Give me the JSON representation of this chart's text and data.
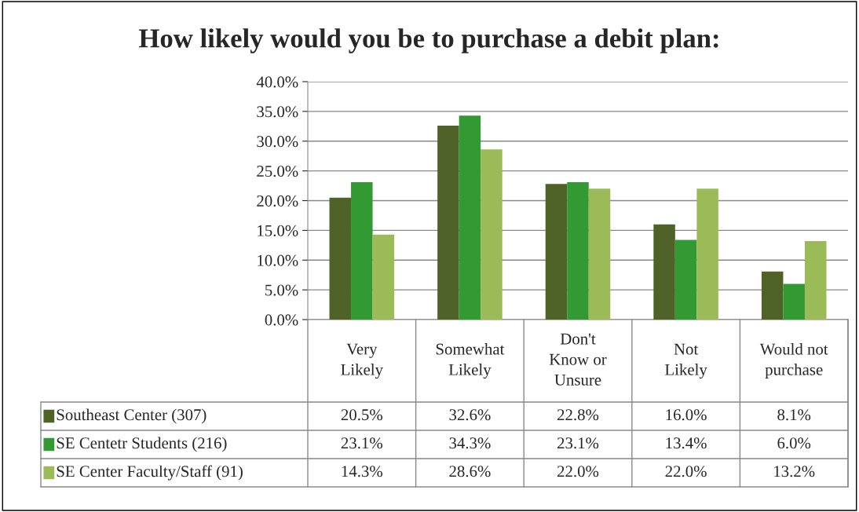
{
  "chart_data": {
    "type": "bar",
    "title": "How likely would you be to purchase a debit plan:",
    "categories": [
      "Very\nLikely",
      "Somewhat\nLikely",
      "Don't\nKnow or\nUnsure",
      "Not\nLikely",
      "Would not\npurchase"
    ],
    "series": [
      {
        "name": "Southeast Center (307)",
        "color": "#4f6228",
        "values": [
          20.5,
          32.6,
          22.8,
          16.0,
          8.1
        ],
        "value_labels": [
          "20.5%",
          "32.6%",
          "22.8%",
          "16.0%",
          "8.1%"
        ]
      },
      {
        "name": "SE Centetr Students (216)",
        "color": "#339933",
        "values": [
          23.1,
          34.3,
          23.1,
          13.4,
          6.0
        ],
        "value_labels": [
          "23.1%",
          "34.3%",
          "23.1%",
          "13.4%",
          "6.0%"
        ]
      },
      {
        "name": "SE Center Faculty/Staff (91)",
        "color": "#9bbb59",
        "values": [
          14.3,
          28.6,
          22.0,
          22.0,
          13.2
        ],
        "value_labels": [
          "14.3%",
          "28.6%",
          "22.0%",
          "22.0%",
          "13.2%"
        ]
      }
    ],
    "ylim": [
      0,
      40
    ],
    "yticks": [
      {
        "value": 0,
        "label": "0.0%"
      },
      {
        "value": 5,
        "label": "5.0%"
      },
      {
        "value": 10,
        "label": "10.0%"
      },
      {
        "value": 15,
        "label": "15.0%"
      },
      {
        "value": 20,
        "label": "20.0%"
      },
      {
        "value": 25,
        "label": "25.0%"
      },
      {
        "value": 30,
        "label": "30.0%"
      },
      {
        "value": 35,
        "label": "35.0%"
      },
      {
        "value": 40,
        "label": "40.0%"
      }
    ],
    "grid": "y",
    "legend": "bottom"
  }
}
